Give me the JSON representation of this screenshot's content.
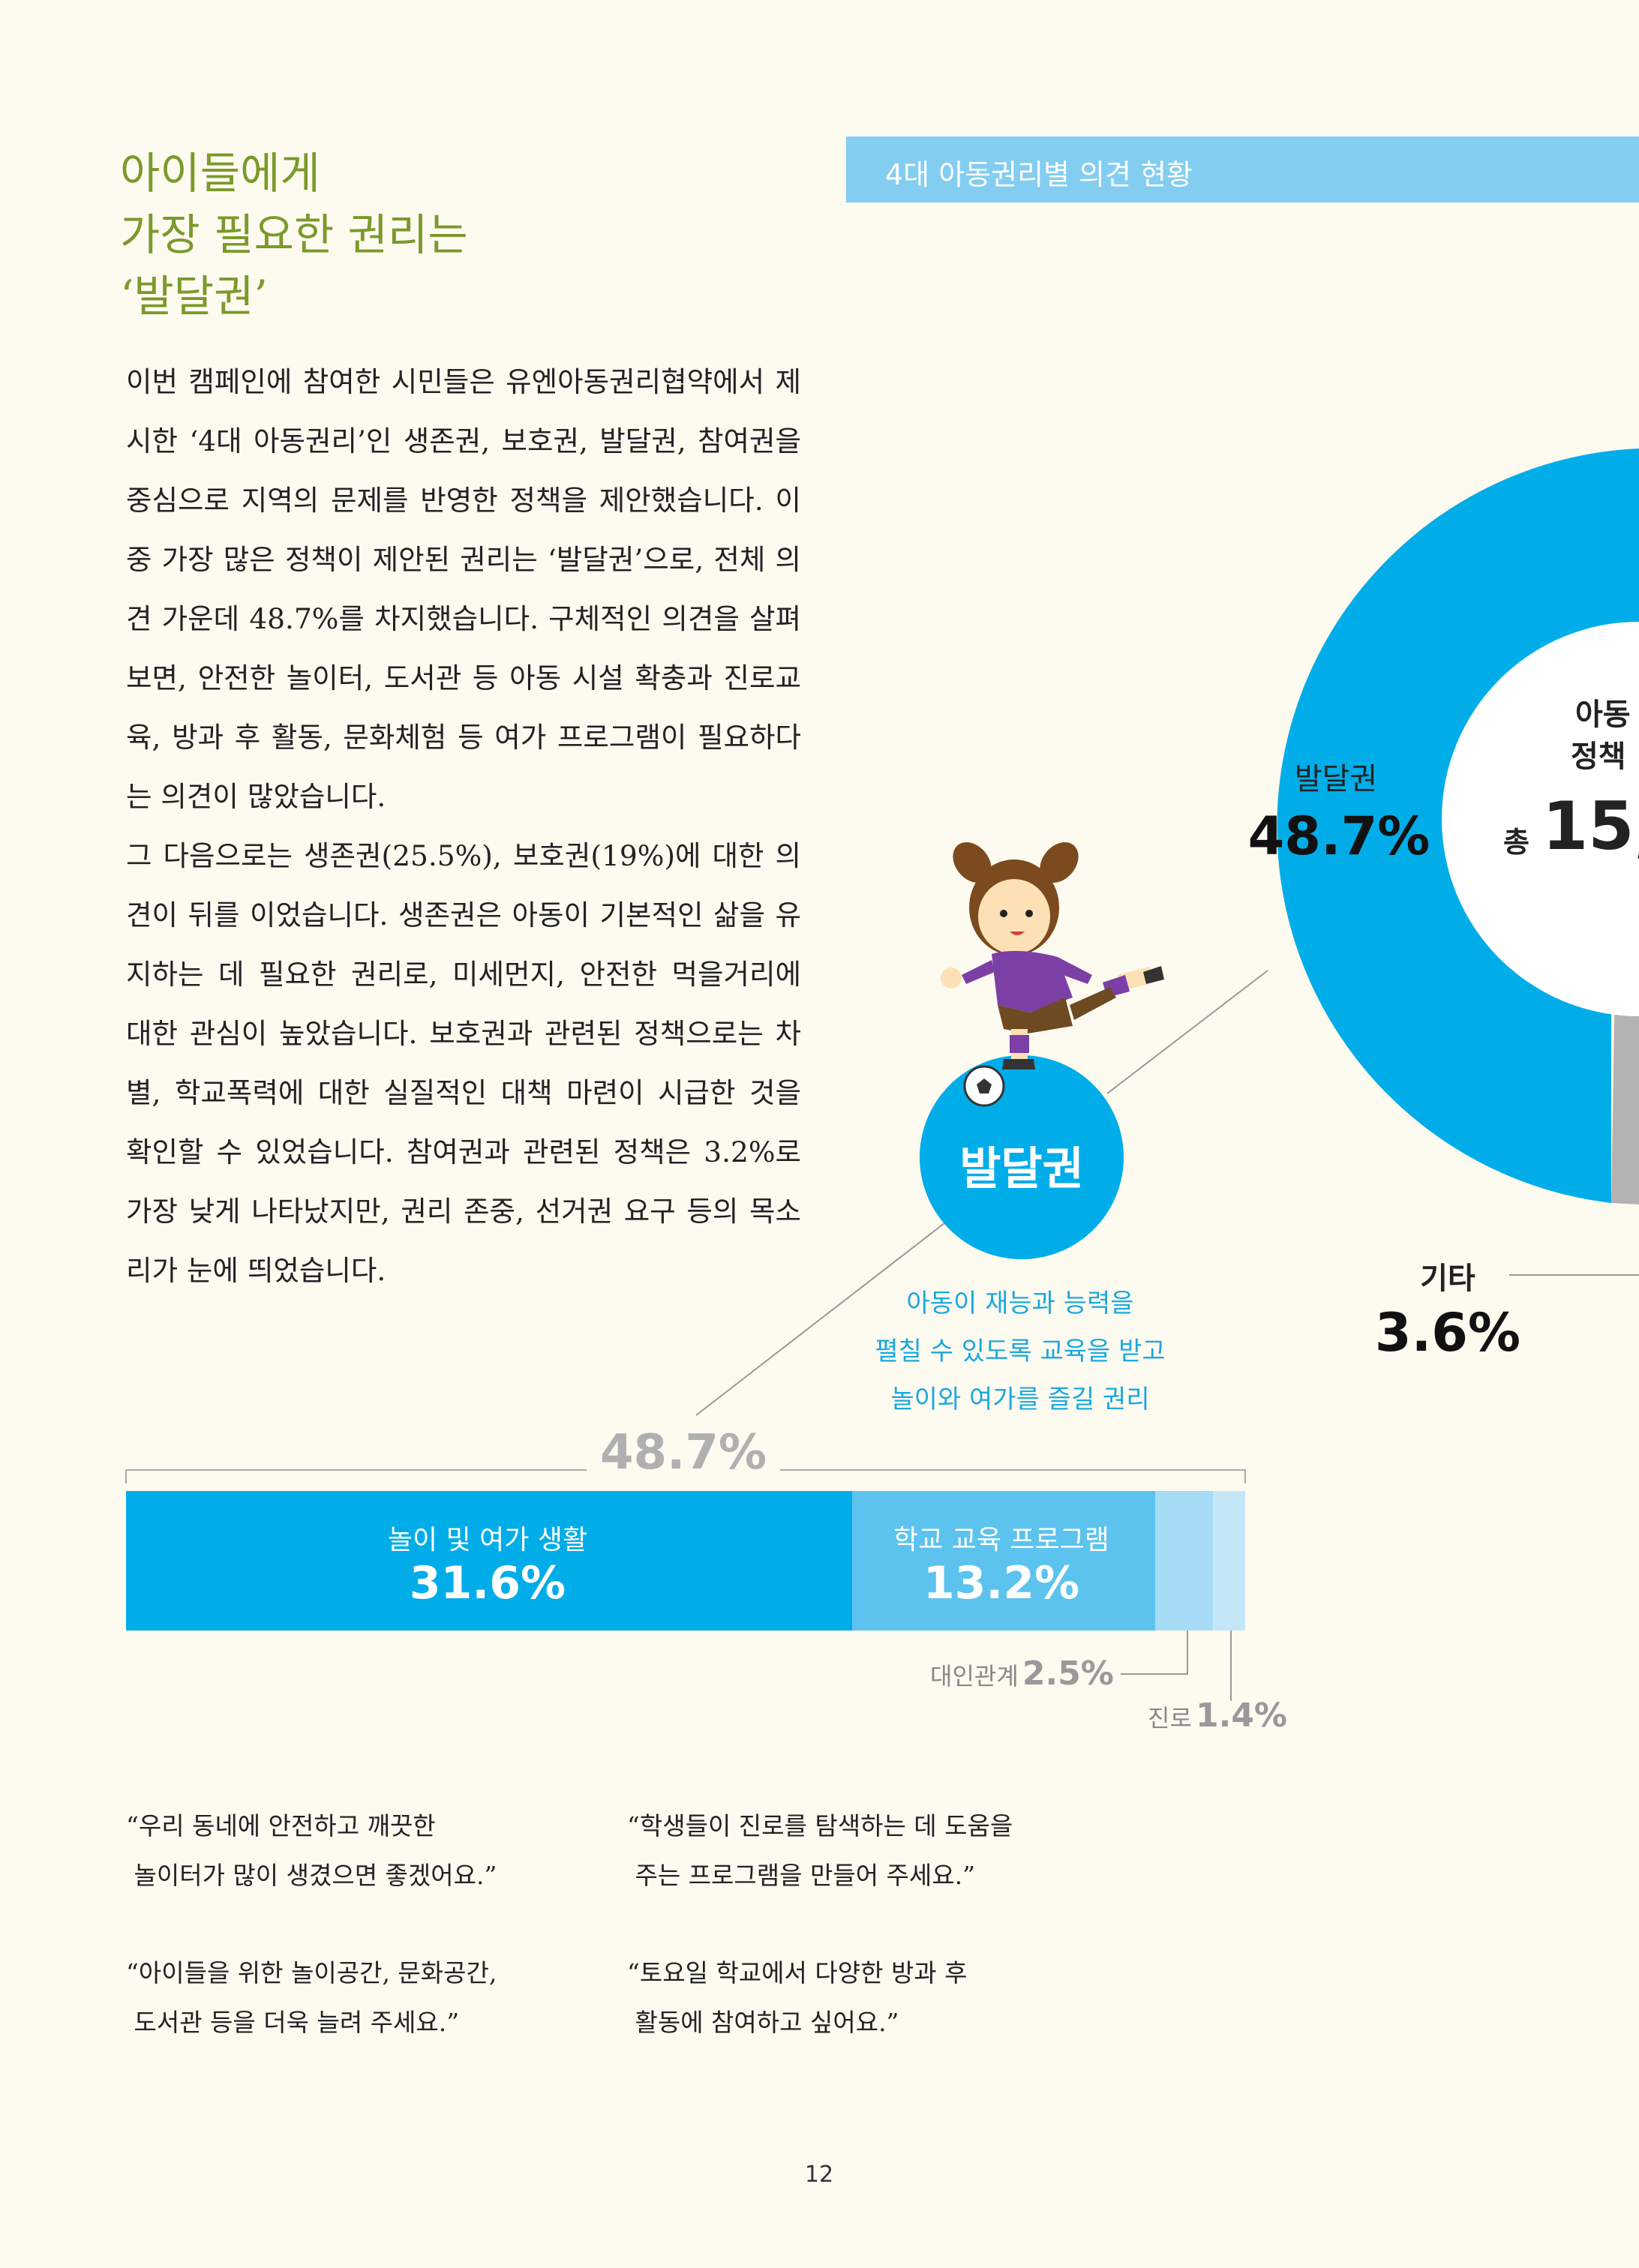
{
  "section": {
    "title_lines": [
      "아이들에게",
      "가장 필요한 권리는",
      "‘발달권’"
    ]
  },
  "body": {
    "paragraph1": "이번 캠페인에 참여한 시민들은 유엔아동권리협약에서 제시한 ‘4대 아동권리’인 생존권, 보호권, 발달권, 참여권을 중심으로 지역의 문제를 반영한 정책을 제안했습니다. 이 중 가장 많은 정책이 제안된 권리는 ‘발달권’으로, 전체 의견 가운데 48.7%를 차지했습니다. 구체적인 의견을 살펴보면, 안전한 놀이터, 도서관 등 아동 시설 확충과 진로교육, 방과 후 활동, 문화체험 등 여가 프로그램이 필요하다는 의견이 많았습니다.",
    "paragraph2": "그 다음으로는 생존권(25.5%), 보호권(19%)에 대한 의견이 뒤를 이었습니다. 생존권은 아동이 기본적인 삶을 유지하는 데 필요한 권리로, 미세먼지, 안전한 먹을거리에 대한 관심이 높았습니다. 보호권과 관련된 정책으로는 차별, 학교폭력에 대한 실질적인 대책 마련이 시급한 것을 확인할 수 있었습니다. 참여권과 관련된 정책은 3.2%로 가장 낮게 나타났지만, 권리 존중, 선거권 요구 등의 목소리가 눈에 띄었습니다."
  },
  "chart_header": "4대 아동권리별 의견 현황",
  "donut": {
    "center_line1": "아동",
    "center_line2": "정책",
    "center_prefix": "총",
    "center_value": "15,",
    "development_label": "발달권",
    "development_value": "48.7%",
    "other_label": "기타",
    "other_value": "3.6%"
  },
  "callout": {
    "circle_label": "발달권",
    "desc_lines": [
      "아동이 재능과 능력을",
      "펼칠 수 있도록 교육을 받고",
      "놀이와 여가를 즐길 권리"
    ],
    "bracket_total": "48.7%"
  },
  "chart_data": {
    "type": "bar",
    "orientation": "horizontal-stacked",
    "total": 48.7,
    "series": [
      {
        "name": "놀이 및 여가 생활",
        "value": 31.6,
        "label": "31.6%",
        "color": "#00ade9"
      },
      {
        "name": "학교 교육 프로그램",
        "value": 13.2,
        "label": "13.2%",
        "color": "#5cc3ef"
      },
      {
        "name": "대인관계",
        "value": 2.5,
        "label": "2.5%",
        "color": "#a6dcf6"
      },
      {
        "name": "진로",
        "value": 1.4,
        "label": "1.4%",
        "color": "#c4e7f8"
      }
    ]
  },
  "quotes": [
    {
      "line1": "“우리 동네에 안전하고 깨끗한",
      "line2": " 놀이터가 많이 생겼으면 좋겠어요.”"
    },
    {
      "line1": "“학생들이 진로를 탐색하는 데 도움을",
      "line2": " 주는 프로그램을 만들어 주세요.”"
    },
    {
      "line1": "“아이들을 위한 놀이공간, 문화공간,",
      "line2": " 도서관 등을 더욱 늘려 주세요.”"
    },
    {
      "line1": "“토요일 학교에서 다양한 방과 후",
      "line2": " 활동에 참여하고 싶어요.”"
    }
  ],
  "page_number": "12",
  "colors": {
    "accent_blue": "#00ade9",
    "header_blue": "#83cdf1",
    "title_green": "#7a9a2a",
    "gray": "#b5b5b5"
  }
}
